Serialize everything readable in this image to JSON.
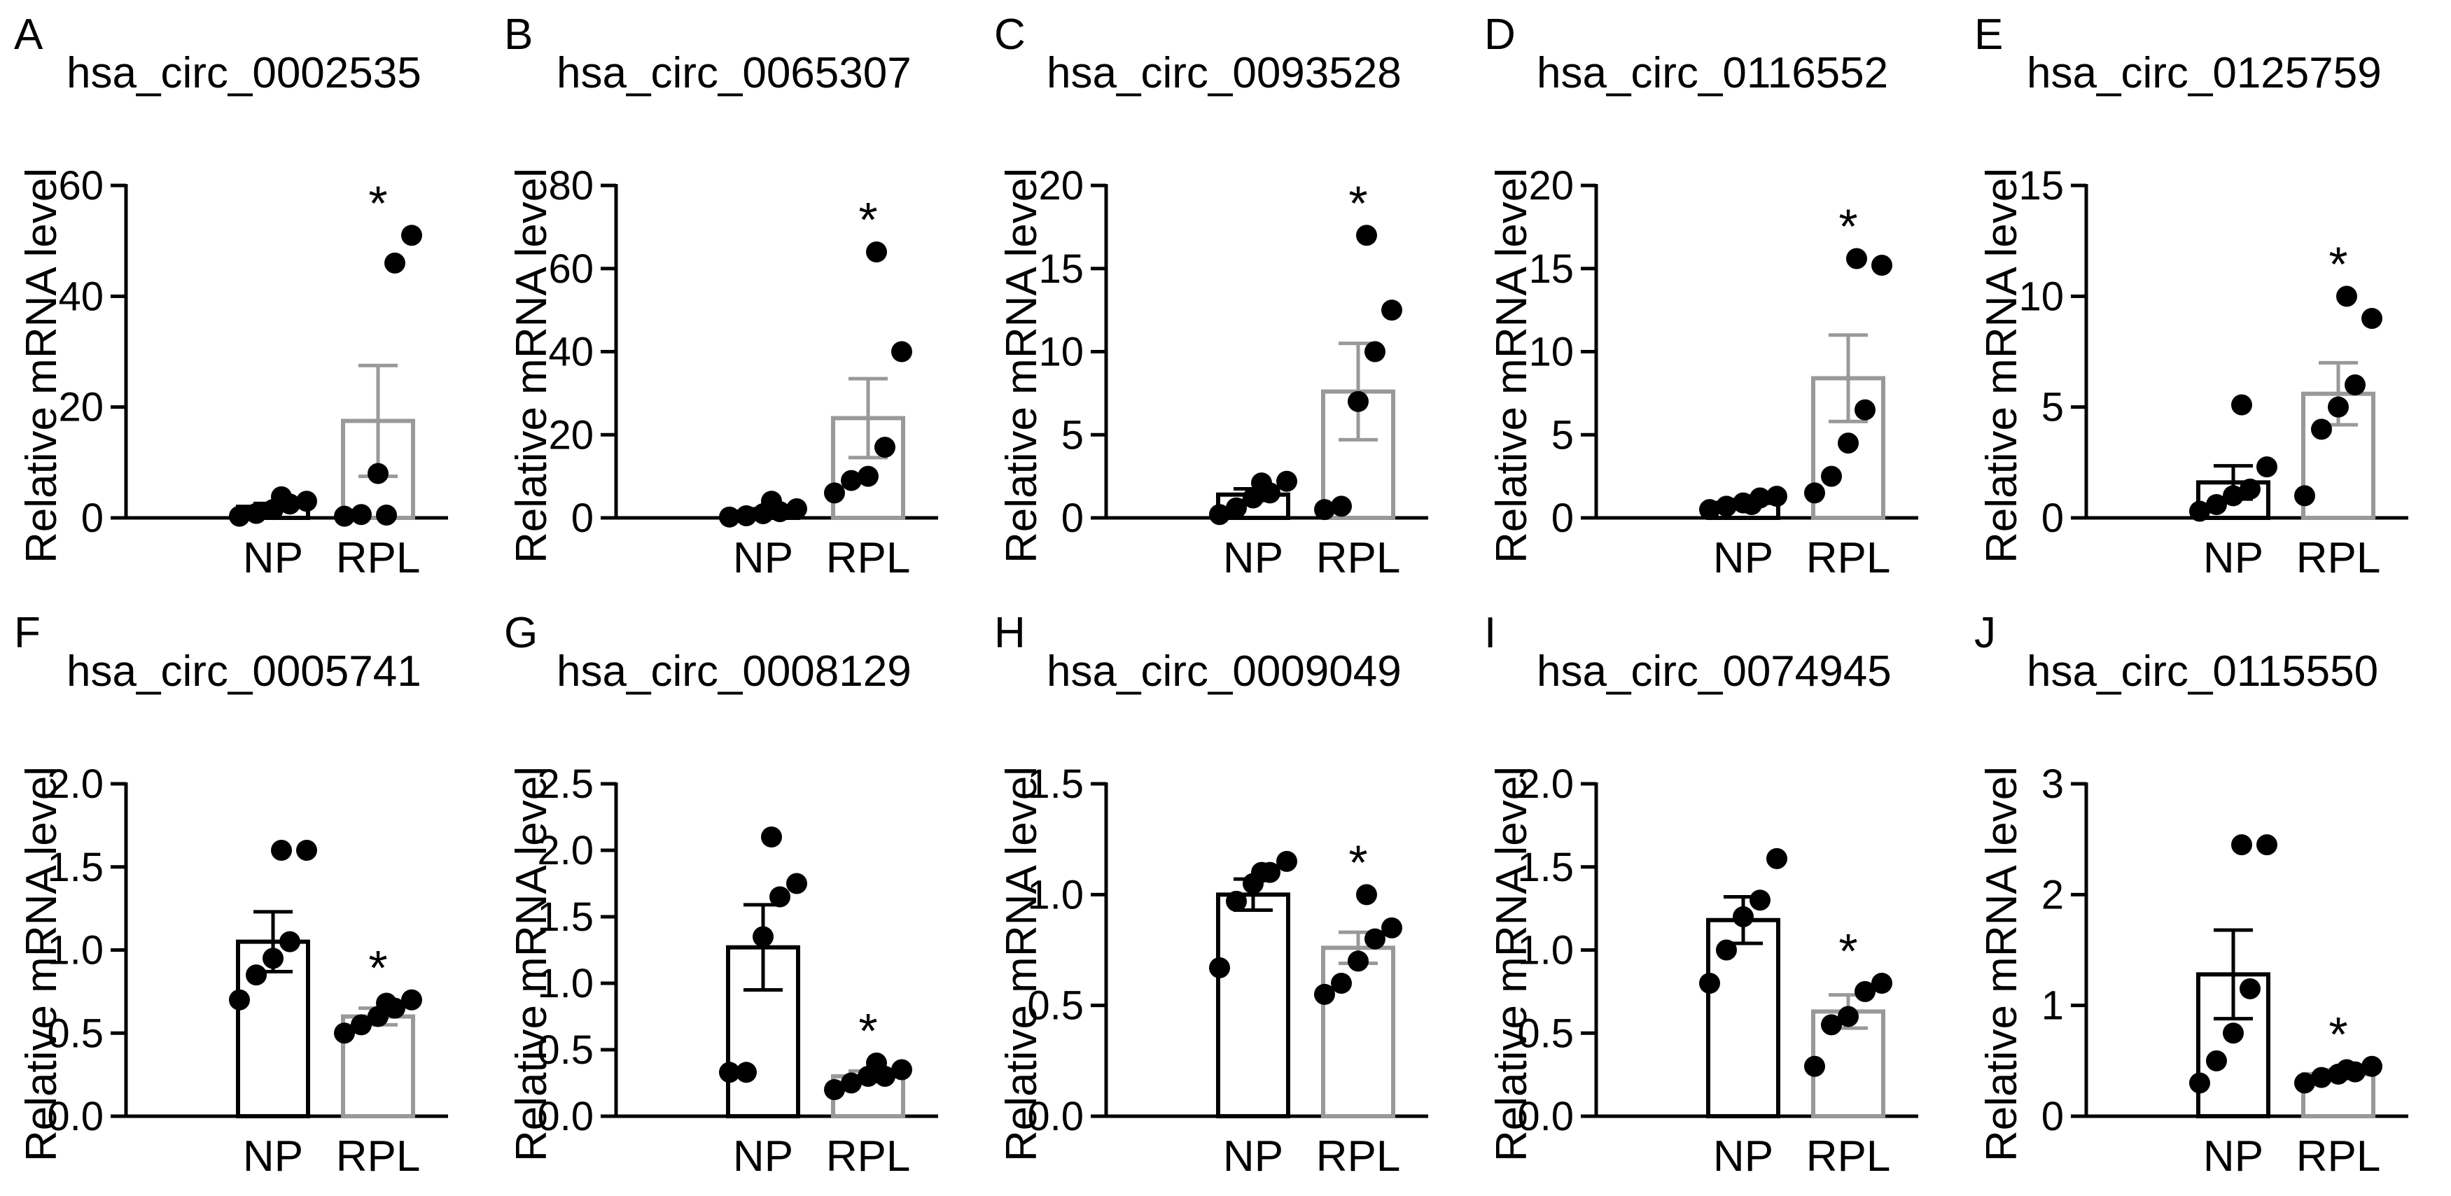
{
  "colors": {
    "np_bar": "#000000",
    "rpl_bar": "#999999",
    "points": "#000000",
    "axis": "#000000",
    "background": "#ffffff"
  },
  "chart_data": [
    {
      "letter": "A",
      "type": "bar",
      "title": "hsa_circ_0002535",
      "xlabel": "",
      "ylabel": "Relative mRNA level",
      "categories": [
        "NP",
        "RPL"
      ],
      "ylim": [
        0,
        60
      ],
      "yticks": [
        "0",
        "20",
        "40",
        "60"
      ],
      "ytick_values": [
        0,
        20,
        40,
        60
      ],
      "means": [
        2.0,
        17.5
      ],
      "sem": [
        0.6,
        10.0
      ],
      "significance": [
        "",
        "*"
      ],
      "points": [
        [
          0.3,
          0.8,
          1.5,
          2.5,
          3.0,
          3.8
        ],
        [
          0.3,
          0.6,
          8.0,
          46.0,
          51.0,
          0.5
        ]
      ]
    },
    {
      "letter": "B",
      "type": "bar",
      "title": "hsa_circ_0065307",
      "xlabel": "",
      "ylabel": "Relative mRNA level",
      "categories": [
        "NP",
        "RPL"
      ],
      "ylim": [
        0,
        80
      ],
      "yticks": [
        "0",
        "20",
        "40",
        "60",
        "80"
      ],
      "ytick_values": [
        0,
        20,
        40,
        60,
        80
      ],
      "means": [
        1.5,
        24.0
      ],
      "sem": [
        0.7,
        9.5
      ],
      "significance": [
        "",
        "*"
      ],
      "points": [
        [
          0.2,
          0.5,
          1.0,
          1.5,
          2.2,
          4.0
        ],
        [
          6.0,
          9.0,
          10.0,
          17.0,
          40.0,
          64.0
        ]
      ]
    },
    {
      "letter": "C",
      "type": "bar",
      "title": "hsa_circ_0093528",
      "xlabel": "",
      "ylabel": "Relative mRNA level",
      "categories": [
        "NP",
        "RPL"
      ],
      "ylim": [
        0,
        20
      ],
      "yticks": [
        "0",
        "5",
        "10",
        "15",
        "20"
      ],
      "ytick_values": [
        0,
        5,
        10,
        15,
        20
      ],
      "means": [
        1.4,
        7.6
      ],
      "sem": [
        0.35,
        2.9
      ],
      "significance": [
        "",
        "*"
      ],
      "points": [
        [
          0.2,
          0.6,
          1.2,
          1.5,
          2.2,
          2.1
        ],
        [
          0.5,
          0.7,
          7.0,
          10.0,
          12.5,
          17.0
        ]
      ]
    },
    {
      "letter": "D",
      "type": "bar",
      "title": "hsa_circ_0116552",
      "xlabel": "",
      "ylabel": "Relative mRNA level",
      "categories": [
        "NP",
        "RPL"
      ],
      "ylim": [
        0,
        20
      ],
      "yticks": [
        "0",
        "5",
        "10",
        "15",
        "20"
      ],
      "ytick_values": [
        0,
        5,
        10,
        15,
        20
      ],
      "means": [
        0.9,
        8.4
      ],
      "sem": [
        0.2,
        2.6
      ],
      "significance": [
        "",
        "*"
      ],
      "points": [
        [
          0.5,
          0.7,
          0.9,
          1.2,
          1.3,
          0.8
        ],
        [
          1.5,
          2.5,
          4.5,
          6.5,
          15.2,
          15.6
        ]
      ]
    },
    {
      "letter": "E",
      "type": "bar",
      "title": "hsa_circ_0125759",
      "xlabel": "",
      "ylabel": "Relative mRNA level",
      "categories": [
        "NP",
        "RPL"
      ],
      "ylim": [
        0,
        15
      ],
      "yticks": [
        "0",
        "5",
        "10",
        "15"
      ],
      "ytick_values": [
        0,
        5,
        10,
        15
      ],
      "means": [
        1.6,
        5.6
      ],
      "sem": [
        0.75,
        1.4
      ],
      "significance": [
        "",
        "*"
      ],
      "points": [
        [
          0.3,
          0.6,
          1.0,
          1.3,
          2.3,
          5.1
        ],
        [
          1.0,
          4.0,
          5.0,
          6.0,
          9.0,
          10.0
        ]
      ]
    },
    {
      "letter": "F",
      "type": "bar",
      "title": "hsa_circ_0005741",
      "xlabel": "",
      "ylabel": "Relative mRNA level",
      "categories": [
        "NP",
        "RPL"
      ],
      "ylim": [
        0,
        2.0
      ],
      "yticks": [
        "0.0",
        "0.5",
        "1.0",
        "1.5",
        "2.0"
      ],
      "ytick_values": [
        0,
        0.5,
        1.0,
        1.5,
        2.0
      ],
      "means": [
        1.05,
        0.6
      ],
      "sem": [
        0.18,
        0.05
      ],
      "significance": [
        "",
        "*"
      ],
      "points": [
        [
          0.7,
          0.85,
          0.95,
          1.05,
          1.6,
          1.6
        ],
        [
          0.5,
          0.55,
          0.6,
          0.65,
          0.7,
          0.68
        ]
      ]
    },
    {
      "letter": "G",
      "type": "bar",
      "title": "hsa_circ_0008129",
      "xlabel": "",
      "ylabel": "Relative mRNA level",
      "categories": [
        "NP",
        "RPL"
      ],
      "ylim": [
        0,
        2.5
      ],
      "yticks": [
        "0.0",
        "0.5",
        "1.0",
        "1.5",
        "2.0",
        "2.5"
      ],
      "ytick_values": [
        0,
        0.5,
        1.0,
        1.5,
        2.0,
        2.5
      ],
      "means": [
        1.27,
        0.3
      ],
      "sem": [
        0.32,
        0.04
      ],
      "significance": [
        "",
        "*"
      ],
      "points": [
        [
          0.33,
          0.33,
          1.35,
          1.65,
          1.75,
          2.1
        ],
        [
          0.2,
          0.25,
          0.3,
          0.3,
          0.35,
          0.4
        ]
      ]
    },
    {
      "letter": "H",
      "type": "bar",
      "title": "hsa_circ_0009049",
      "xlabel": "",
      "ylabel": "Relative mRNA level",
      "categories": [
        "NP",
        "RPL"
      ],
      "ylim": [
        0,
        1.5
      ],
      "yticks": [
        "0.0",
        "0.5",
        "1.0",
        "1.5"
      ],
      "ytick_values": [
        0,
        0.5,
        1.0,
        1.5
      ],
      "means": [
        1.0,
        0.76
      ],
      "sem": [
        0.07,
        0.07
      ],
      "significance": [
        "",
        "*"
      ],
      "points": [
        [
          0.67,
          0.97,
          1.05,
          1.1,
          1.15,
          1.1
        ],
        [
          0.55,
          0.6,
          0.7,
          0.8,
          0.85,
          1.0
        ]
      ]
    },
    {
      "letter": "I",
      "type": "bar",
      "title": "hsa_circ_0074945",
      "xlabel": "",
      "ylabel": "Relative mRNA level",
      "categories": [
        "NP",
        "RPL"
      ],
      "ylim": [
        0,
        2.0
      ],
      "yticks": [
        "0.0",
        "0.5",
        "1.0",
        "1.5",
        "2.0"
      ],
      "ytick_values": [
        0,
        0.5,
        1.0,
        1.5,
        2.0
      ],
      "means": [
        1.18,
        0.63
      ],
      "sem": [
        0.14,
        0.1
      ],
      "significance": [
        "",
        "*"
      ],
      "points": [
        [
          0.8,
          1.0,
          1.2,
          1.3,
          1.55
        ],
        [
          0.3,
          0.55,
          0.6,
          0.75,
          0.8
        ]
      ]
    },
    {
      "letter": "J",
      "type": "bar",
      "title": "hsa_circ_0115550",
      "xlabel": "",
      "ylabel": "Relative mRNA level",
      "categories": [
        "NP",
        "RPL"
      ],
      "ylim": [
        0,
        3
      ],
      "yticks": [
        "0",
        "1",
        "2",
        "3"
      ],
      "ytick_values": [
        0,
        1,
        2,
        3
      ],
      "means": [
        1.28,
        0.38
      ],
      "sem": [
        0.4,
        0.04
      ],
      "significance": [
        "",
        "*"
      ],
      "points": [
        [
          0.3,
          0.5,
          0.75,
          1.15,
          2.45,
          2.45
        ],
        [
          0.3,
          0.35,
          0.38,
          0.4,
          0.45,
          0.42
        ]
      ]
    }
  ]
}
